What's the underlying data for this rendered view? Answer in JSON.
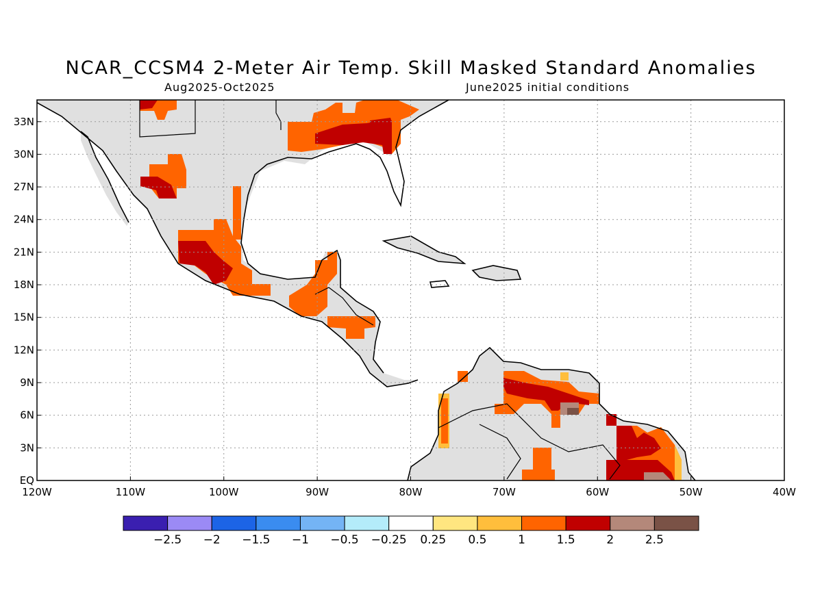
{
  "title": "NCAR_CCSM4 2-Meter Air Temp. Skill Masked Standard Anomalies",
  "subtitle_left": "Aug2025-Oct2025",
  "subtitle_right": "June2025 initial conditions",
  "map": {
    "lon_range": [
      -120,
      -40
    ],
    "lat_range": [
      0,
      35
    ],
    "x_ticks": [
      {
        "lon": -120,
        "label": "120W"
      },
      {
        "lon": -110,
        "label": "110W"
      },
      {
        "lon": -100,
        "label": "100W"
      },
      {
        "lon": -90,
        "label": "90W"
      },
      {
        "lon": -80,
        "label": "80W"
      },
      {
        "lon": -70,
        "label": "70W"
      },
      {
        "lon": -60,
        "label": "60W"
      },
      {
        "lon": -50,
        "label": "50W"
      },
      {
        "lon": -40,
        "label": "40W"
      }
    ],
    "y_ticks": [
      {
        "lat": 0,
        "label": "EQ"
      },
      {
        "lat": 3,
        "label": "3N"
      },
      {
        "lat": 6,
        "label": "6N"
      },
      {
        "lat": 9,
        "label": "9N"
      },
      {
        "lat": 12,
        "label": "12N"
      },
      {
        "lat": 15,
        "label": "15N"
      },
      {
        "lat": 18,
        "label": "18N"
      },
      {
        "lat": 21,
        "label": "21N"
      },
      {
        "lat": 24,
        "label": "24N"
      },
      {
        "lat": 27,
        "label": "27N"
      },
      {
        "lat": 30,
        "label": "30N"
      },
      {
        "lat": 33,
        "label": "33N"
      }
    ],
    "grid": true,
    "land_mask_color": "#e0e0e0",
    "coast_color": "#000000"
  },
  "colorbar": {
    "colors": [
      "#3a1fb0",
      "#9b8af5",
      "#1c64e6",
      "#3a8cf0",
      "#74b4f5",
      "#b4ecfa",
      "#ffffff",
      "#ffe680",
      "#ffbe3c",
      "#ff6400",
      "#c00000",
      "#b4887a",
      "#7a5246"
    ],
    "labels": [
      "-2.5",
      "-2",
      "-1.5",
      "-1",
      "-0.5",
      "-0.25",
      "0.25",
      "0.5",
      "1",
      "1.5",
      "2",
      "2.5"
    ]
  },
  "anomaly_regions": [
    {
      "name": "southwest-us",
      "value": 1.5,
      "lon": [
        -110,
        -106.5
      ],
      "lat": [
        33.8,
        35
      ]
    },
    {
      "name": "gulf-coast-us",
      "value": 1.0,
      "lon": [
        -91,
        -80.5
      ],
      "lat": [
        30,
        33.5
      ]
    },
    {
      "name": "southeast-us",
      "value": 1.5,
      "lon": [
        -88,
        -82
      ],
      "lat": [
        30.2,
        35
      ]
    },
    {
      "name": "sierra-madre-north",
      "value": 1.0,
      "lon": [
        -107.5,
        -103.5
      ],
      "lat": [
        26.5,
        29.5
      ]
    },
    {
      "name": "tamaulipas",
      "value": 1.0,
      "lon": [
        -98.5,
        -96.5
      ],
      "lat": [
        20.5,
        27
      ]
    },
    {
      "name": "central-mexico",
      "value": 1.5,
      "lon": [
        -104,
        -99
      ],
      "lat": [
        18.2,
        22.2
      ]
    },
    {
      "name": "south-mexico",
      "value": 1.0,
      "lon": [
        -98.5,
        -94.5
      ],
      "lat": [
        16.7,
        19.5
      ]
    },
    {
      "name": "yucatan-guatemala",
      "value": 1.0,
      "lon": [
        -92.5,
        -87.5
      ],
      "lat": [
        15,
        21
      ]
    },
    {
      "name": "honduras",
      "value": 1.0,
      "lon": [
        -88.5,
        -83.5
      ],
      "lat": [
        13.2,
        15.5
      ]
    },
    {
      "name": "venezuela-north",
      "value": 1.5,
      "lon": [
        -70,
        -59.5
      ],
      "lat": [
        5.5,
        10
      ]
    },
    {
      "name": "venezuela-southeast",
      "value": 2.0,
      "lon": [
        -64,
        -62
      ],
      "lat": [
        5.8,
        7
      ]
    },
    {
      "name": "guianas",
      "value": 1.5,
      "lon": [
        -58.5,
        -51.5
      ],
      "lat": [
        0.5,
        5
      ]
    },
    {
      "name": "amapa-amazon",
      "value": 2.0,
      "lon": [
        -59,
        -51
      ],
      "lat": [
        0,
        2
      ]
    },
    {
      "name": "colombia-west",
      "value": 1.0,
      "lon": [
        -77.5,
        -76.5
      ],
      "lat": [
        3,
        7.5
      ]
    },
    {
      "name": "amazon-north",
      "value": 1.0,
      "lon": [
        -68,
        -63.5
      ],
      "lat": [
        0,
        3
      ]
    }
  ]
}
